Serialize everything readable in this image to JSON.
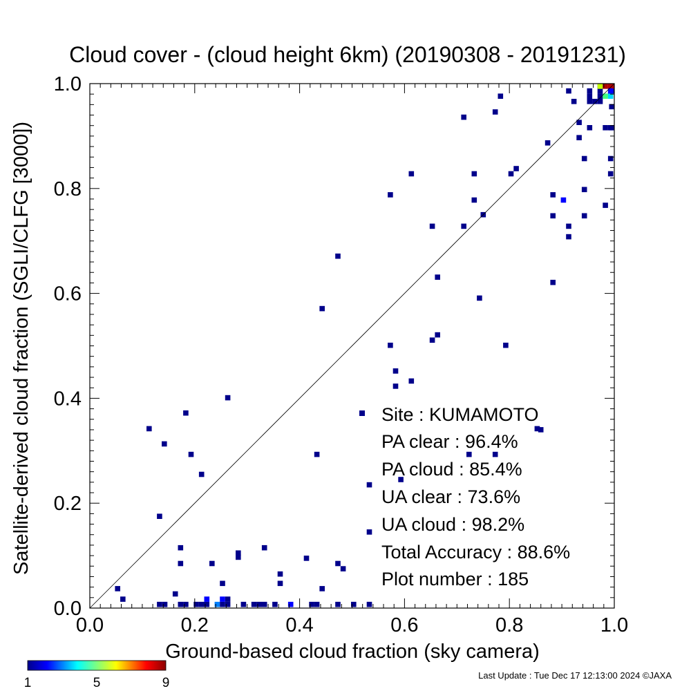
{
  "chart_data": {
    "type": "heatmap",
    "title": "Cloud cover - (cloud height 6km)  (20190308 - 20191231)",
    "xlabel": "Ground-based cloud fraction (sky camera)",
    "ylabel": "Satellite-derived cloud fraction (SGLI/CLFG [3000])",
    "xlim": [
      0,
      1
    ],
    "ylim": [
      0,
      1
    ],
    "x_ticks": [
      "0.0",
      "0.2",
      "0.4",
      "0.6",
      "0.8",
      "1.0"
    ],
    "y_ticks": [
      "0.0",
      "0.2",
      "0.4",
      "0.6",
      "0.8",
      "1.0"
    ],
    "one_to_one_line": true,
    "grid": false,
    "colorbar": {
      "min_label": "1",
      "mid_label": "5",
      "max_label": "9",
      "min": 1,
      "max": 9
    },
    "points": [
      {
        "x": 0.75,
        "y": 0.75,
        "c": 1
      },
      {
        "x": 0.86,
        "y": 0.34,
        "c": 1
      },
      {
        "x": 0.053,
        "y": 0.037,
        "c": 1
      },
      {
        "x": 0.063,
        "y": 0.017,
        "c": 1
      },
      {
        "x": 0.113,
        "y": 0.342,
        "c": 1
      },
      {
        "x": 0.133,
        "y": 0.175,
        "c": 1
      },
      {
        "x": 0.142,
        "y": 0.313,
        "c": 1
      },
      {
        "x": 0.183,
        "y": 0.372,
        "c": 1
      },
      {
        "x": 0.193,
        "y": 0.293,
        "c": 1
      },
      {
        "x": 0.213,
        "y": 0.255,
        "c": 1
      },
      {
        "x": 0.263,
        "y": 0.401,
        "c": 1
      },
      {
        "x": 0.173,
        "y": 0.115,
        "c": 1
      },
      {
        "x": 0.173,
        "y": 0.085,
        "c": 1
      },
      {
        "x": 0.163,
        "y": 0.027,
        "c": 1
      },
      {
        "x": 0.233,
        "y": 0.085,
        "c": 1
      },
      {
        "x": 0.253,
        "y": 0.047,
        "c": 1
      },
      {
        "x": 0.283,
        "y": 0.105,
        "c": 1
      },
      {
        "x": 0.283,
        "y": 0.097,
        "c": 1
      },
      {
        "x": 0.333,
        "y": 0.115,
        "c": 1
      },
      {
        "x": 0.363,
        "y": 0.065,
        "c": 1
      },
      {
        "x": 0.363,
        "y": 0.047,
        "c": 1
      },
      {
        "x": 0.413,
        "y": 0.095,
        "c": 1
      },
      {
        "x": 0.443,
        "y": 0.037,
        "c": 1
      },
      {
        "x": 0.473,
        "y": 0.085,
        "c": 1
      },
      {
        "x": 0.483,
        "y": 0.075,
        "c": 1
      },
      {
        "x": 0.433,
        "y": 0.293,
        "c": 1
      },
      {
        "x": 0.443,
        "y": 0.571,
        "c": 1
      },
      {
        "x": 0.473,
        "y": 0.671,
        "c": 1
      },
      {
        "x": 0.533,
        "y": 0.235,
        "c": 1
      },
      {
        "x": 0.533,
        "y": 0.145,
        "c": 1
      },
      {
        "x": 0.573,
        "y": 0.501,
        "c": 1
      },
      {
        "x": 0.573,
        "y": 0.788,
        "c": 1
      },
      {
        "x": 0.583,
        "y": 0.452,
        "c": 1
      },
      {
        "x": 0.583,
        "y": 0.423,
        "c": 1
      },
      {
        "x": 0.593,
        "y": 0.245,
        "c": 1
      },
      {
        "x": 0.613,
        "y": 0.433,
        "c": 1
      },
      {
        "x": 0.613,
        "y": 0.828,
        "c": 1
      },
      {
        "x": 0.653,
        "y": 0.511,
        "c": 1
      },
      {
        "x": 0.653,
        "y": 0.728,
        "c": 1
      },
      {
        "x": 0.663,
        "y": 0.521,
        "c": 1
      },
      {
        "x": 0.663,
        "y": 0.631,
        "c": 1
      },
      {
        "x": 0.713,
        "y": 0.728,
        "c": 1
      },
      {
        "x": 0.713,
        "y": 0.936,
        "c": 1
      },
      {
        "x": 0.723,
        "y": 0.293,
        "c": 1
      },
      {
        "x": 0.733,
        "y": 0.828,
        "c": 1
      },
      {
        "x": 0.733,
        "y": 0.778,
        "c": 1
      },
      {
        "x": 0.743,
        "y": 0.591,
        "c": 1
      },
      {
        "x": 0.773,
        "y": 0.946,
        "c": 1
      },
      {
        "x": 0.783,
        "y": 0.976,
        "c": 1
      },
      {
        "x": 0.773,
        "y": 0.293,
        "c": 1
      },
      {
        "x": 0.793,
        "y": 0.501,
        "c": 1
      },
      {
        "x": 0.803,
        "y": 0.828,
        "c": 1
      },
      {
        "x": 0.813,
        "y": 0.838,
        "c": 1
      },
      {
        "x": 0.853,
        "y": 0.342,
        "c": 1
      },
      {
        "x": 0.873,
        "y": 0.887,
        "c": 1
      },
      {
        "x": 0.883,
        "y": 0.788,
        "c": 1
      },
      {
        "x": 0.883,
        "y": 0.748,
        "c": 1
      },
      {
        "x": 0.883,
        "y": 0.621,
        "c": 1
      },
      {
        "x": 0.903,
        "y": 0.778,
        "c": 2
      },
      {
        "x": 0.913,
        "y": 0.728,
        "c": 1
      },
      {
        "x": 0.913,
        "y": 0.708,
        "c": 1
      },
      {
        "x": 0.913,
        "y": 0.986,
        "c": 1
      },
      {
        "x": 0.923,
        "y": 0.966,
        "c": 1
      },
      {
        "x": 0.933,
        "y": 0.926,
        "c": 1
      },
      {
        "x": 0.933,
        "y": 0.897,
        "c": 1
      },
      {
        "x": 0.943,
        "y": 0.857,
        "c": 1
      },
      {
        "x": 0.943,
        "y": 0.798,
        "c": 1
      },
      {
        "x": 0.943,
        "y": 0.748,
        "c": 1
      },
      {
        "x": 0.953,
        "y": 0.916,
        "c": 1
      },
      {
        "x": 0.953,
        "y": 0.986,
        "c": 1
      },
      {
        "x": 0.953,
        "y": 0.976,
        "c": 1
      },
      {
        "x": 0.953,
        "y": 0.966,
        "c": 1
      },
      {
        "x": 0.963,
        "y": 0.966,
        "c": 1
      },
      {
        "x": 0.973,
        "y": 0.996,
        "c": 1
      },
      {
        "x": 0.973,
        "y": 0.986,
        "c": 1
      },
      {
        "x": 0.973,
        "y": 0.976,
        "c": 1
      },
      {
        "x": 0.973,
        "y": 0.966,
        "c": 1
      },
      {
        "x": 0.983,
        "y": 0.768,
        "c": 1
      },
      {
        "x": 0.983,
        "y": 0.916,
        "c": 1
      },
      {
        "x": 0.993,
        "y": 0.916,
        "c": 1
      },
      {
        "x": 0.993,
        "y": 0.857,
        "c": 1
      },
      {
        "x": 0.993,
        "y": 0.828,
        "c": 1
      },
      {
        "x": 0.993,
        "y": 0.986,
        "c": 1
      },
      {
        "x": 1.003,
        "y": 0.916,
        "c": 1
      },
      {
        "x": 1.003,
        "y": 0.956,
        "c": 1
      },
      {
        "x": 1.003,
        "y": 0.986,
        "c": 1
      },
      {
        "x": 0.983,
        "y": 0.976,
        "c": 5
      },
      {
        "x": 0.993,
        "y": 0.976,
        "c": 4
      },
      {
        "x": 0.973,
        "y": 0.996,
        "c": 6
      },
      {
        "x": 0.983,
        "y": 0.996,
        "c": 9
      },
      {
        "x": 0.993,
        "y": 0.996,
        "c": 9
      },
      {
        "x": 1.003,
        "y": 0.996,
        "c": 9
      },
      {
        "x": 0.993,
        "y": 0.986,
        "c": 2
      },
      {
        "x": 0.133,
        "y": 0.007,
        "c": 1
      },
      {
        "x": 0.143,
        "y": 0.007,
        "c": 1
      },
      {
        "x": 0.173,
        "y": 0.007,
        "c": 1
      },
      {
        "x": 0.183,
        "y": 0.007,
        "c": 1
      },
      {
        "x": 0.203,
        "y": 0.007,
        "c": 1
      },
      {
        "x": 0.213,
        "y": 0.007,
        "c": 1
      },
      {
        "x": 0.223,
        "y": 0.007,
        "c": 1
      },
      {
        "x": 0.223,
        "y": 0.017,
        "c": 2
      },
      {
        "x": 0.243,
        "y": 0.007,
        "c": 3
      },
      {
        "x": 0.253,
        "y": 0.007,
        "c": 1
      },
      {
        "x": 0.253,
        "y": 0.017,
        "c": 2
      },
      {
        "x": 0.263,
        "y": 0.017,
        "c": 1
      },
      {
        "x": 0.263,
        "y": 0.007,
        "c": 1
      },
      {
        "x": 0.293,
        "y": 0.007,
        "c": 1
      },
      {
        "x": 0.313,
        "y": 0.007,
        "c": 1
      },
      {
        "x": 0.323,
        "y": 0.007,
        "c": 1
      },
      {
        "x": 0.333,
        "y": 0.007,
        "c": 1
      },
      {
        "x": 0.353,
        "y": 0.007,
        "c": 1
      },
      {
        "x": 0.383,
        "y": 0.007,
        "c": 2
      },
      {
        "x": 0.423,
        "y": 0.007,
        "c": 1
      },
      {
        "x": 0.433,
        "y": 0.007,
        "c": 1
      },
      {
        "x": 0.473,
        "y": 0.007,
        "c": 1
      },
      {
        "x": 0.503,
        "y": 0.007,
        "c": 1
      },
      {
        "x": 0.533,
        "y": 0.007,
        "c": 1
      }
    ],
    "legend": {
      "site_line": "Site : KUMAMOTO",
      "lines": [
        "PA clear :  96.4%",
        "PA cloud :  85.4%",
        "UA clear :  73.6%",
        "UA cloud :  98.2%",
        "Total Accuracy :  88.6%",
        "Plot number :       185"
      ]
    }
  },
  "footer": "Last Update : Tue Dec 17 12:13:00 2024  ©JAXA"
}
